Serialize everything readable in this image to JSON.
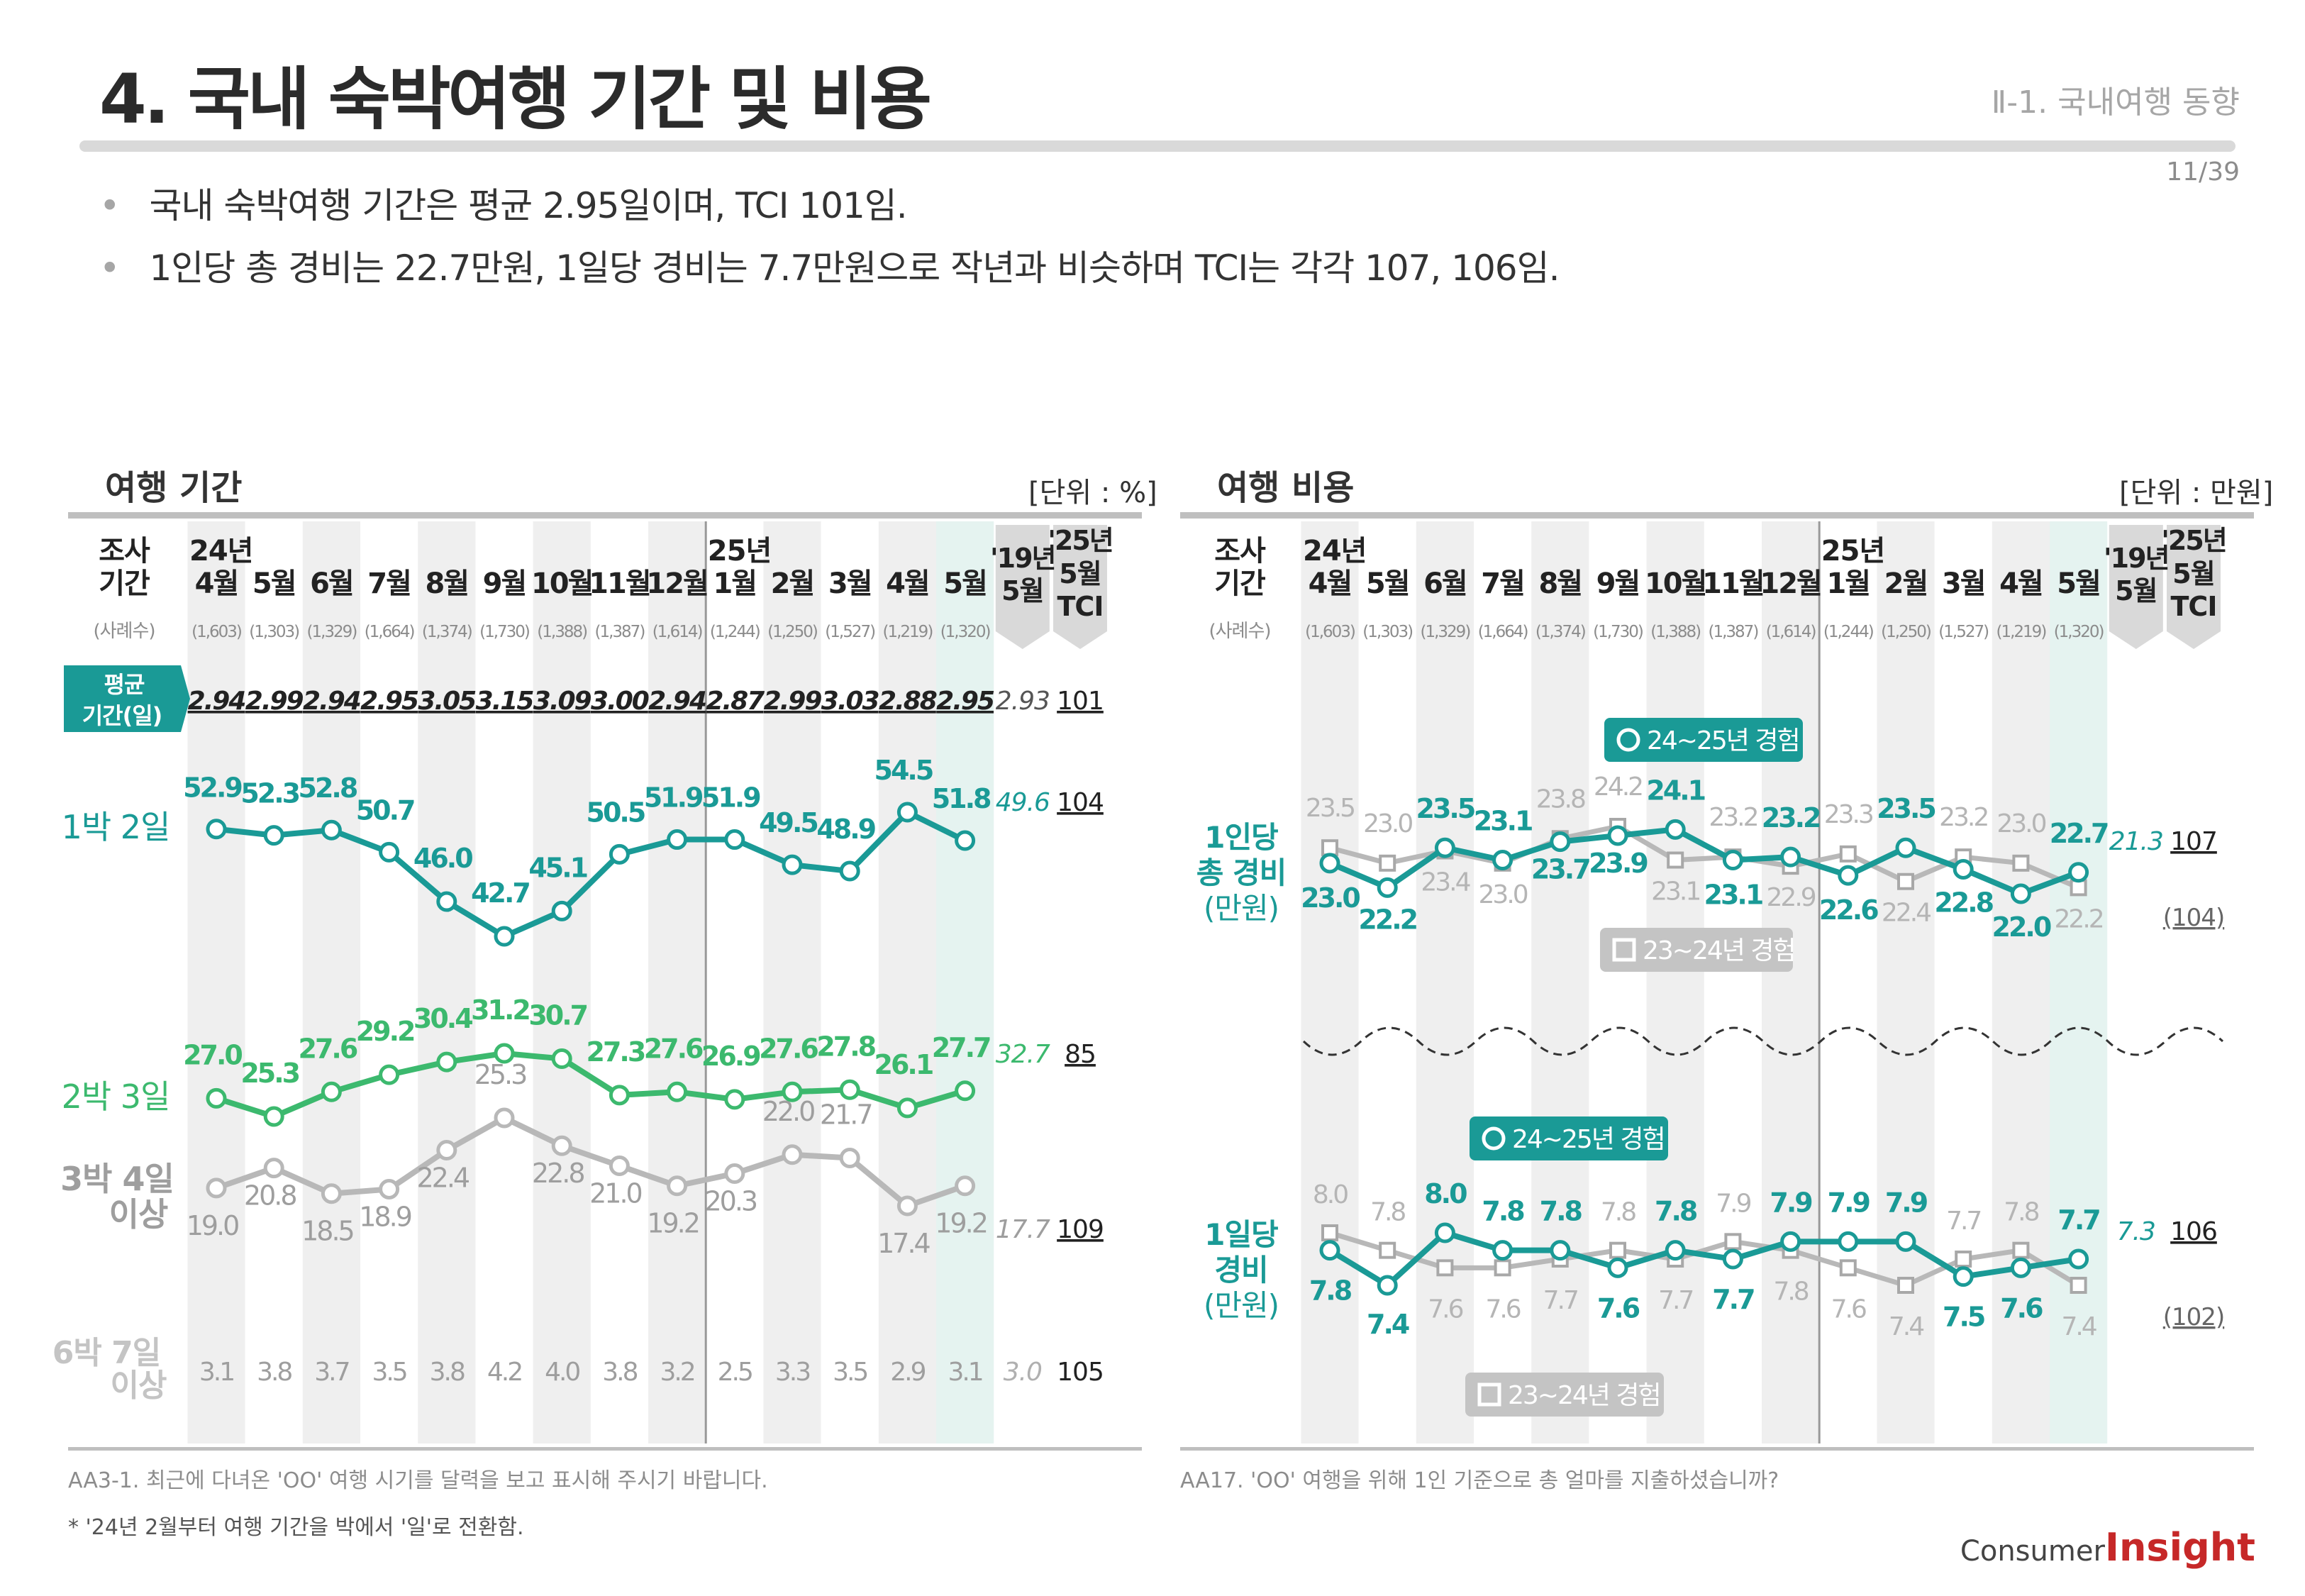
{
  "title": "4. 국내 숙박여행 기간 및 비용",
  "section": "Ⅱ-1. 국내여행 동향",
  "page_num": "11/39",
  "bullets": [
    "국내 숙박여행 기간은 평균 2.95일이며, TCI 101임.",
    "1인당 총 경비는 22.7만원, 1일당 경비는 7.7만원으로 작년과 비슷하며 TCI는 각각 107, 106임."
  ],
  "logo": {
    "prefix": "Consumer",
    "brand": "Insight"
  },
  "colors": {
    "teal": "#1a9a96",
    "green": "#3cb96e",
    "gray": "#b8b8b8",
    "accent_box": "#1a9a96"
  },
  "header": {
    "survey_label_1": "조사",
    "survey_label_2": "기간",
    "sample_label": "(사례수)",
    "year_24": "24년",
    "year_25": "25년",
    "months": [
      "4월",
      "5월",
      "6월",
      "7월",
      "8월",
      "9월",
      "10월",
      "11월",
      "12월",
      "1월",
      "2월",
      "3월",
      "4월",
      "5월"
    ],
    "samples": [
      "(1,603)",
      "(1,303)",
      "(1,329)",
      "(1,664)",
      "(1,374)",
      "(1,730)",
      "(1,388)",
      "(1,387)",
      "(1,614)",
      "(1,244)",
      "(1,250)",
      "(1,527)",
      "(1,219)",
      "(1,320)"
    ],
    "col19": "'19년 5월",
    "col_tci": "'25년 5월 TCI"
  },
  "chart_data": [
    {
      "type": "line",
      "title": "여행 기간",
      "unit": "[단위 : %]",
      "categories": [
        "24년 4월",
        "5월",
        "6월",
        "7월",
        "8월",
        "9월",
        "10월",
        "11월",
        "12월",
        "25년 1월",
        "2월",
        "3월",
        "4월",
        "5월"
      ],
      "avg_row": {
        "label": "평균 기간(일)",
        "values": [
          "2.94",
          "2.99",
          "2.94",
          "2.95",
          "3.05",
          "3.15",
          "3.09",
          "3.00",
          "2.94",
          "2.87",
          "2.99",
          "3.03",
          "2.88",
          "2.95"
        ],
        "v19": "2.93",
        "tci": "101"
      },
      "series": [
        {
          "name": "1박 2일",
          "values": [
            52.9,
            52.3,
            52.8,
            50.7,
            46.0,
            42.7,
            45.1,
            50.5,
            51.9,
            51.9,
            49.5,
            48.9,
            54.5,
            51.8
          ],
          "v19": "49.6",
          "tci": "104"
        },
        {
          "name": "2박 3일",
          "values": [
            27.0,
            25.3,
            27.6,
            29.2,
            30.4,
            31.2,
            30.7,
            27.3,
            27.6,
            26.9,
            27.6,
            27.8,
            26.1,
            27.7
          ],
          "v19": "32.7",
          "tci": "85"
        },
        {
          "name": "3박 4일 이상",
          "values": [
            19.0,
            20.8,
            18.5,
            18.9,
            22.4,
            25.3,
            22.8,
            21.0,
            19.2,
            20.3,
            22.0,
            21.7,
            17.4,
            19.2
          ],
          "v19": "17.7",
          "tci": "109"
        },
        {
          "name": "6박 7일 이상",
          "values": [
            3.1,
            3.8,
            3.7,
            3.5,
            3.8,
            4.2,
            4.0,
            3.8,
            3.2,
            2.5,
            3.3,
            3.5,
            2.9,
            3.1
          ],
          "v19": "3.0",
          "tci": "105"
        }
      ],
      "footnote": "AA3-1. 최근에 다녀온 'OO' 여행 시기를 달력을 보고 표시해 주시기 바랍니다.",
      "note": "* '24년 2월부터 여행 기간을 박에서 '일'로 전환함."
    },
    {
      "type": "line",
      "title": "여행 비용",
      "unit": "[단위 : 만원]",
      "categories": [
        "24년 4월",
        "5월",
        "6월",
        "7월",
        "8월",
        "9월",
        "10월",
        "11월",
        "12월",
        "25년 1월",
        "2월",
        "3월",
        "4월",
        "5월"
      ],
      "groups": [
        {
          "name": "1인당 총 경비 (만원)",
          "series": [
            {
              "name": "24~25년 경험",
              "values": [
                23.0,
                22.2,
                23.5,
                23.1,
                23.7,
                23.9,
                24.1,
                23.1,
                23.2,
                22.6,
                23.5,
                22.8,
                22.0,
                22.7
              ]
            },
            {
              "name": "23~24년 경험",
              "values": [
                23.5,
                23.0,
                23.4,
                23.0,
                23.8,
                24.2,
                23.1,
                23.2,
                22.9,
                23.3,
                22.4,
                23.2,
                23.0,
                22.2
              ]
            }
          ],
          "v19": "21.3",
          "tci": "107",
          "tci_prev": "(104)"
        },
        {
          "name": "1일당 경비 (만원)",
          "series": [
            {
              "name": "24~25년 경험",
              "values": [
                7.8,
                7.4,
                8.0,
                7.8,
                7.8,
                7.6,
                7.8,
                7.7,
                7.9,
                7.9,
                7.9,
                7.5,
                7.6,
                7.7
              ]
            },
            {
              "name": "23~24년 경험",
              "values": [
                8.0,
                7.8,
                7.6,
                7.6,
                7.7,
                7.8,
                7.7,
                7.9,
                7.8,
                7.6,
                7.4,
                7.7,
                7.8,
                7.4
              ]
            }
          ],
          "v19": "7.3",
          "tci": "106",
          "tci_prev": "(102)"
        }
      ],
      "footnote": "AA17. 'OO' 여행을 위해 1인 기준으로 총 얼마를 지출하셨습니까?"
    }
  ]
}
